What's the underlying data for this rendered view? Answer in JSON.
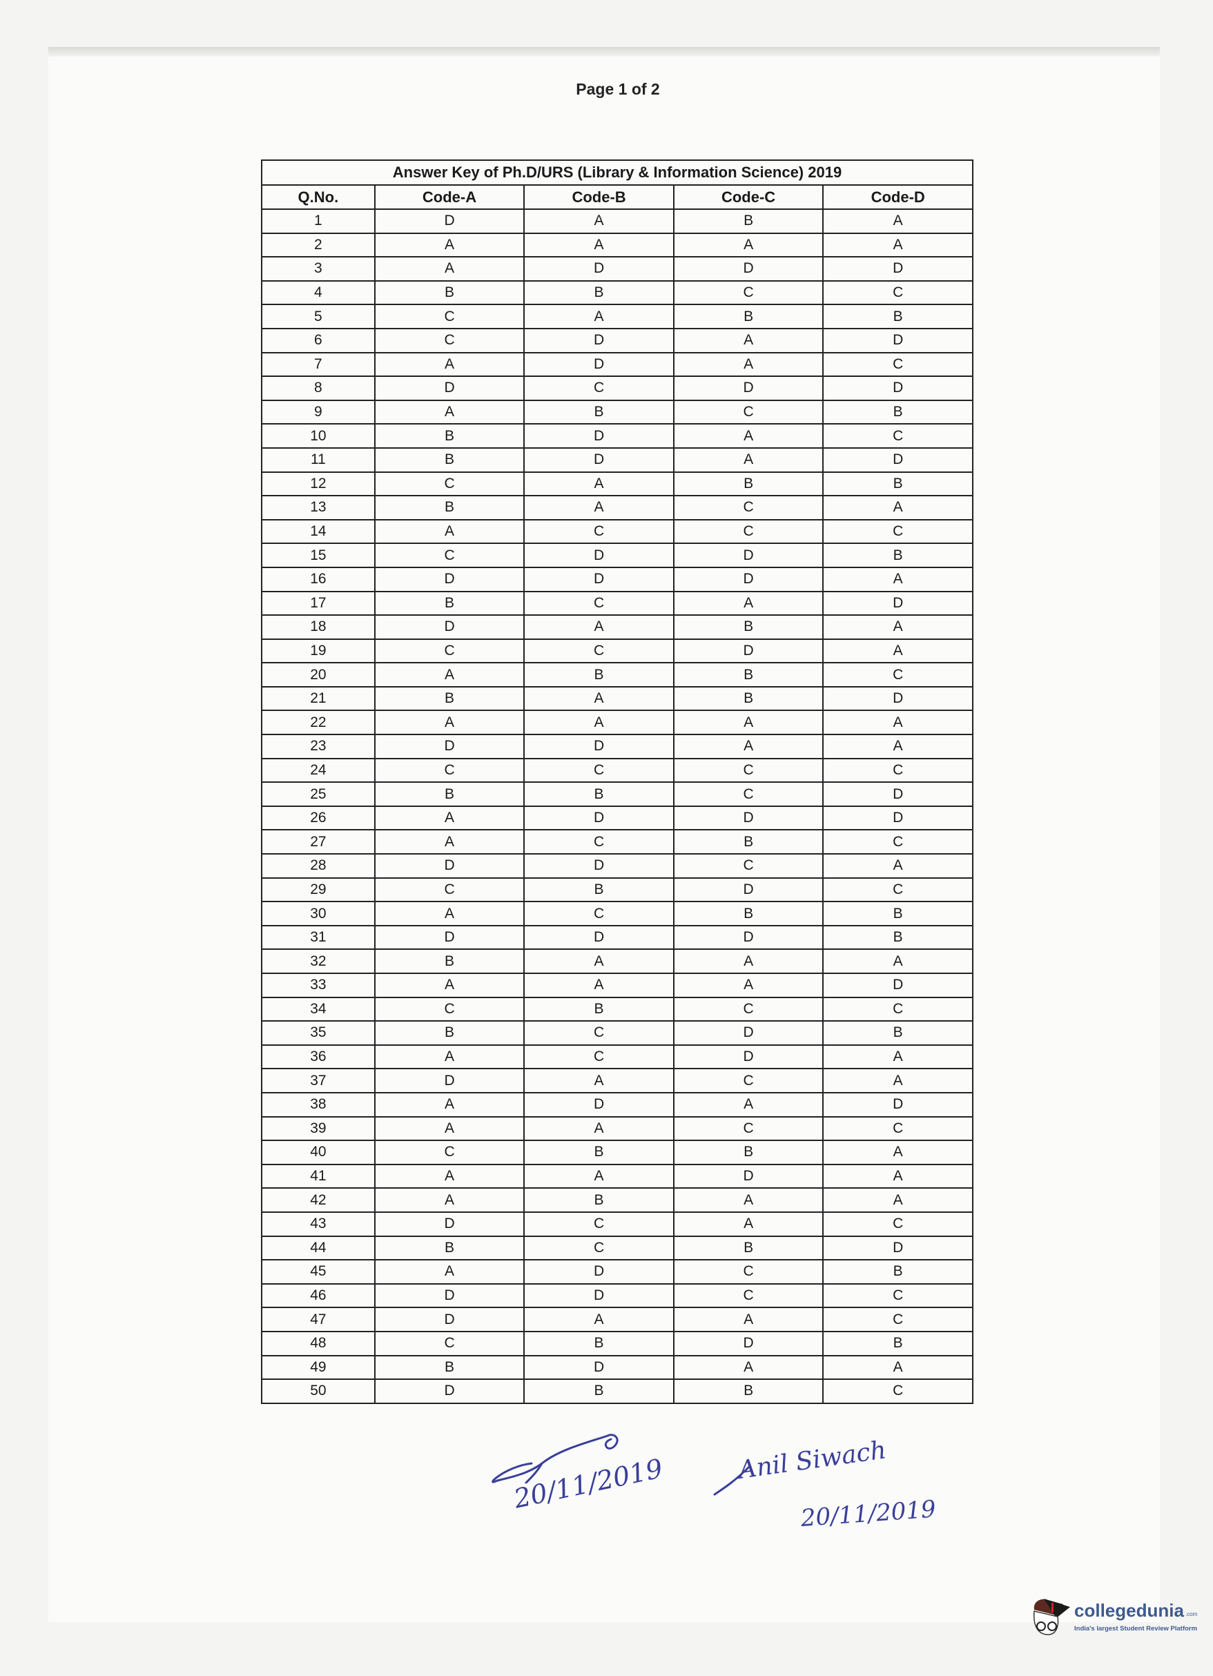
{
  "page_label": "Page 1 of 2",
  "table": {
    "title": "Answer Key of Ph.D/URS (Library & Information Science) 2019",
    "headers": [
      "Q.No.",
      "Code-A",
      "Code-B",
      "Code-C",
      "Code-D"
    ],
    "rows": [
      [
        "1",
        "D",
        "A",
        "B",
        "A"
      ],
      [
        "2",
        "A",
        "A",
        "A",
        "A"
      ],
      [
        "3",
        "A",
        "D",
        "D",
        "D"
      ],
      [
        "4",
        "B",
        "B",
        "C",
        "C"
      ],
      [
        "5",
        "C",
        "A",
        "B",
        "B"
      ],
      [
        "6",
        "C",
        "D",
        "A",
        "D"
      ],
      [
        "7",
        "A",
        "D",
        "A",
        "C"
      ],
      [
        "8",
        "D",
        "C",
        "D",
        "D"
      ],
      [
        "9",
        "A",
        "B",
        "C",
        "B"
      ],
      [
        "10",
        "B",
        "D",
        "A",
        "C"
      ],
      [
        "11",
        "B",
        "D",
        "A",
        "D"
      ],
      [
        "12",
        "C",
        "A",
        "B",
        "B"
      ],
      [
        "13",
        "B",
        "A",
        "C",
        "A"
      ],
      [
        "14",
        "A",
        "C",
        "C",
        "C"
      ],
      [
        "15",
        "C",
        "D",
        "D",
        "B"
      ],
      [
        "16",
        "D",
        "D",
        "D",
        "A"
      ],
      [
        "17",
        "B",
        "C",
        "A",
        "D"
      ],
      [
        "18",
        "D",
        "A",
        "B",
        "A"
      ],
      [
        "19",
        "C",
        "C",
        "D",
        "A"
      ],
      [
        "20",
        "A",
        "B",
        "B",
        "C"
      ],
      [
        "21",
        "B",
        "A",
        "B",
        "D"
      ],
      [
        "22",
        "A",
        "A",
        "A",
        "A"
      ],
      [
        "23",
        "D",
        "D",
        "A",
        "A"
      ],
      [
        "24",
        "C",
        "C",
        "C",
        "C"
      ],
      [
        "25",
        "B",
        "B",
        "C",
        "D"
      ],
      [
        "26",
        "A",
        "D",
        "D",
        "D"
      ],
      [
        "27",
        "A",
        "C",
        "B",
        "C"
      ],
      [
        "28",
        "D",
        "D",
        "C",
        "A"
      ],
      [
        "29",
        "C",
        "B",
        "D",
        "C"
      ],
      [
        "30",
        "A",
        "C",
        "B",
        "B"
      ],
      [
        "31",
        "D",
        "D",
        "D",
        "B"
      ],
      [
        "32",
        "B",
        "A",
        "A",
        "A"
      ],
      [
        "33",
        "A",
        "A",
        "A",
        "D"
      ],
      [
        "34",
        "C",
        "B",
        "C",
        "C"
      ],
      [
        "35",
        "B",
        "C",
        "D",
        "B"
      ],
      [
        "36",
        "A",
        "C",
        "D",
        "A"
      ],
      [
        "37",
        "D",
        "A",
        "C",
        "A"
      ],
      [
        "38",
        "A",
        "D",
        "A",
        "D"
      ],
      [
        "39",
        "A",
        "A",
        "C",
        "C"
      ],
      [
        "40",
        "C",
        "B",
        "B",
        "A"
      ],
      [
        "41",
        "A",
        "A",
        "D",
        "A"
      ],
      [
        "42",
        "A",
        "B",
        "A",
        "A"
      ],
      [
        "43",
        "D",
        "C",
        "A",
        "C"
      ],
      [
        "44",
        "B",
        "C",
        "B",
        "D"
      ],
      [
        "45",
        "A",
        "D",
        "C",
        "B"
      ],
      [
        "46",
        "D",
        "D",
        "C",
        "C"
      ],
      [
        "47",
        "D",
        "A",
        "A",
        "C"
      ],
      [
        "48",
        "C",
        "B",
        "D",
        "B"
      ],
      [
        "49",
        "B",
        "D",
        "A",
        "A"
      ],
      [
        "50",
        "D",
        "B",
        "B",
        "C"
      ]
    ]
  },
  "signatures": [
    {
      "date": "20/11/2019"
    },
    {
      "name": "Anil Siwach",
      "date": "20/11/2019"
    }
  ],
  "watermark": {
    "brand": "collegedunia",
    "suffix": ".com",
    "tagline": "India's largest Student Review Platform"
  },
  "colors": {
    "ink": "#3a3f9a",
    "brand": "#3f5a8e"
  }
}
